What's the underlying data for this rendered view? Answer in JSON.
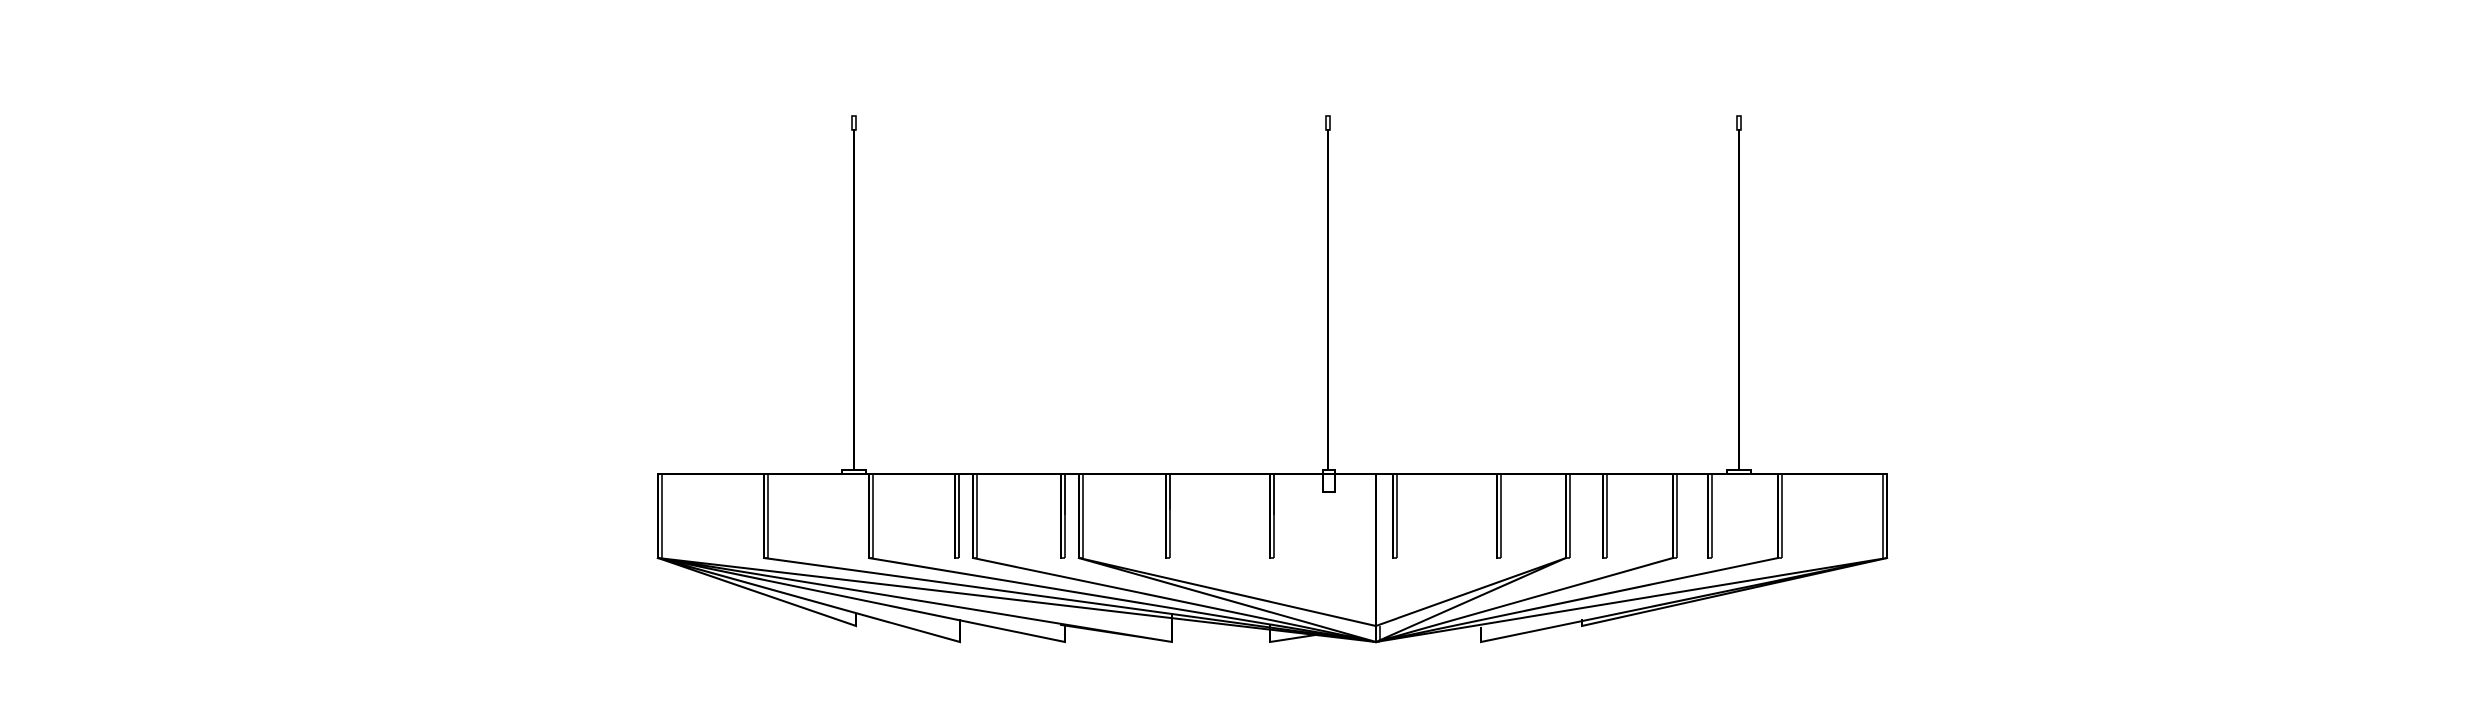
{
  "drawing": {
    "subject": "suspended-fixture-elevation",
    "line_color": "#000000",
    "background": "#ffffff",
    "suspension_cable_count": 3,
    "vertical_fin_count": 24
  }
}
